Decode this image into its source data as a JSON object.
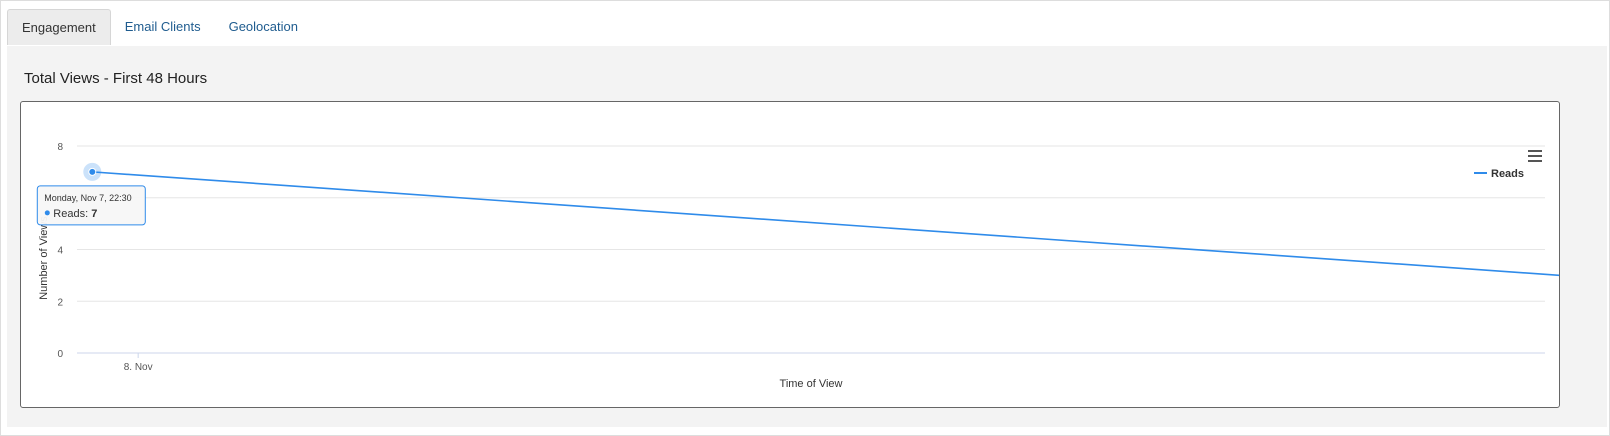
{
  "tabs": [
    {
      "label": "Engagement",
      "active": true
    },
    {
      "label": "Email Clients",
      "active": false
    },
    {
      "label": "Geolocation",
      "active": false
    }
  ],
  "panel": {
    "title": "Total Views - First 48 Hours"
  },
  "menu_icon": "hamburger-menu-icon",
  "colors": {
    "series": "#2f8bea",
    "grid": "#e6e6e6",
    "link": "#1f5c8f"
  },
  "chart_data": {
    "type": "line",
    "xlabel": "Time of View",
    "ylabel": "Number of Views",
    "ylim": [
      0,
      8
    ],
    "yticks": [
      "0",
      "2",
      "4",
      "6",
      "8"
    ],
    "xticks": [
      {
        "label": "8. Nov",
        "x": "2016-11-08T00:00"
      }
    ],
    "xlim": [
      "2016-11-07T22:00",
      "2016-11-09T22:00"
    ],
    "series": [
      {
        "name": "Reads",
        "points": [
          {
            "x": "2016-11-07T22:30",
            "y": 7
          },
          {
            "x": "2016-11-09T22:30",
            "y": 3
          }
        ]
      }
    ],
    "legend_position": "top-right",
    "grid": true,
    "tooltip": {
      "title": "Monday, Nov 7, 22:30",
      "series": "Reads",
      "value": "7"
    }
  }
}
